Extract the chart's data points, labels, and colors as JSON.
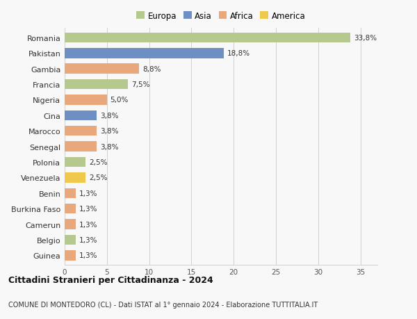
{
  "countries": [
    "Romania",
    "Pakistan",
    "Gambia",
    "Francia",
    "Nigeria",
    "Cina",
    "Marocco",
    "Senegal",
    "Polonia",
    "Venezuela",
    "Benin",
    "Burkina Faso",
    "Camerun",
    "Belgio",
    "Guinea"
  ],
  "values": [
    33.8,
    18.8,
    8.8,
    7.5,
    5.0,
    3.8,
    3.8,
    3.8,
    2.5,
    2.5,
    1.3,
    1.3,
    1.3,
    1.3,
    1.3
  ],
  "labels": [
    "33,8%",
    "18,8%",
    "8,8%",
    "7,5%",
    "5,0%",
    "3,8%",
    "3,8%",
    "3,8%",
    "2,5%",
    "2,5%",
    "1,3%",
    "1,3%",
    "1,3%",
    "1,3%",
    "1,3%"
  ],
  "continents": [
    "Europa",
    "Asia",
    "Africa",
    "Europa",
    "Africa",
    "Asia",
    "Africa",
    "Africa",
    "Europa",
    "America",
    "Africa",
    "Africa",
    "Africa",
    "Europa",
    "Africa"
  ],
  "colors": {
    "Europa": "#b5c98e",
    "Asia": "#6e8fc4",
    "Africa": "#e8a87c",
    "America": "#f0c84e"
  },
  "legend_order": [
    "Europa",
    "Asia",
    "Africa",
    "America"
  ],
  "title": "Cittadini Stranieri per Cittadinanza - 2024",
  "subtitle": "COMUNE DI MONTEDORO (CL) - Dati ISTAT al 1° gennaio 2024 - Elaborazione TUTTITALIA.IT",
  "xlim": [
    0,
    37
  ],
  "xticks": [
    0,
    5,
    10,
    15,
    20,
    25,
    30,
    35
  ],
  "background_color": "#f8f8f8",
  "grid_color": "#d0d0d0",
  "bar_height": 0.65
}
